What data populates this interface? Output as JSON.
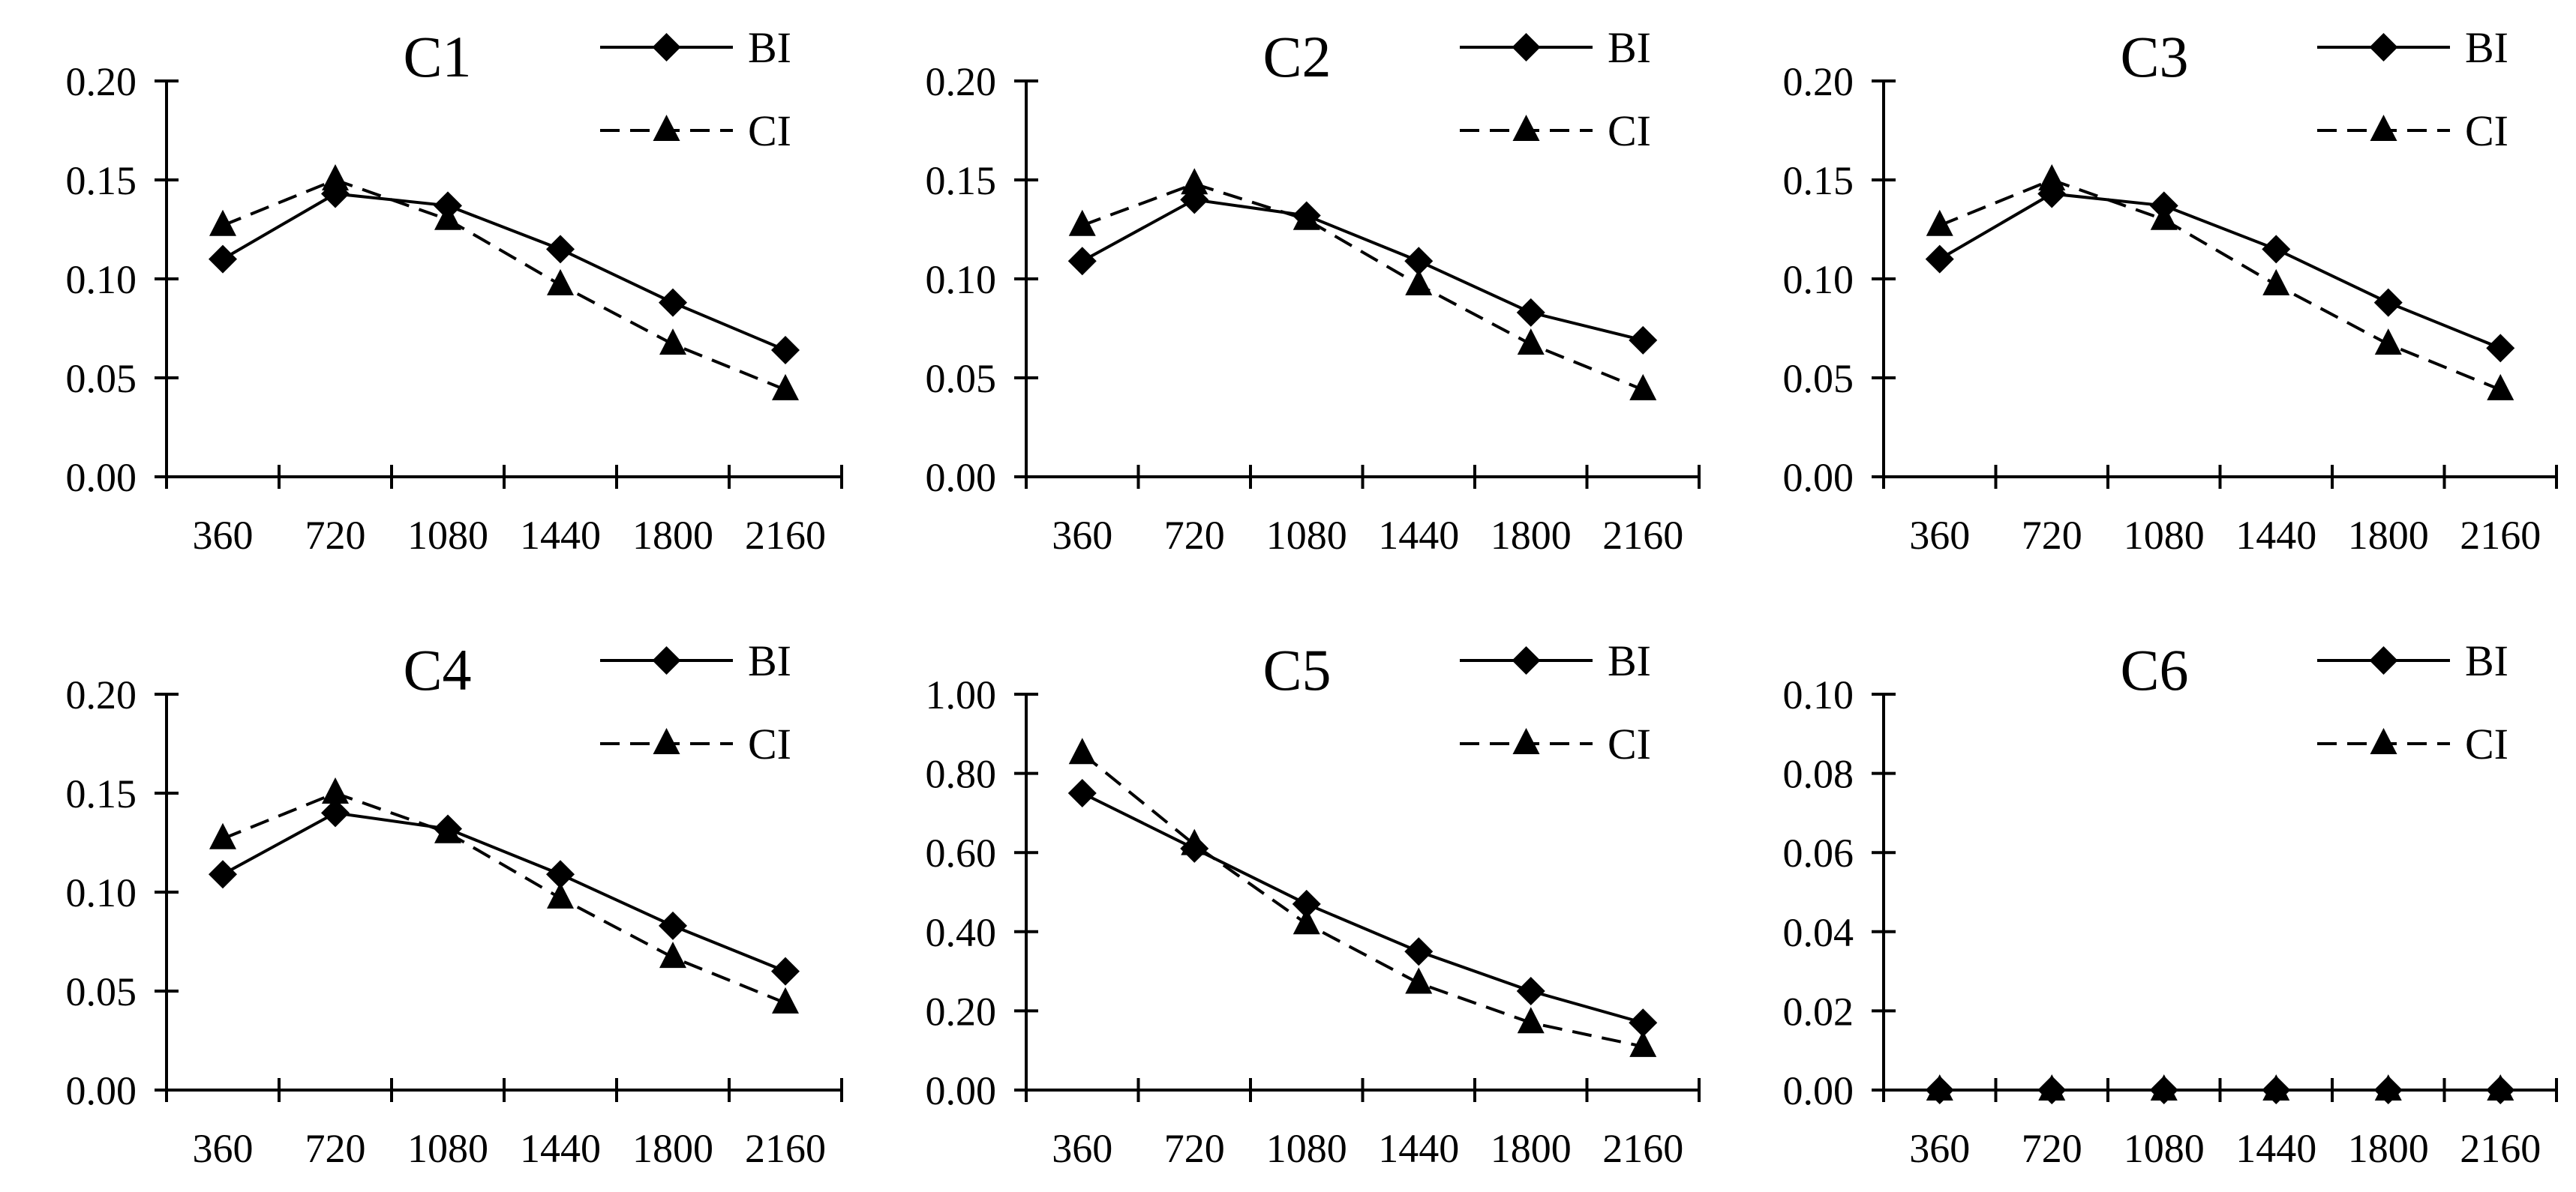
{
  "legend": {
    "series_a": "BI",
    "series_b": "CI"
  },
  "chart_data": [
    {
      "type": "line",
      "title": "C1",
      "categories": [
        "360",
        "720",
        "1080",
        "1440",
        "1800",
        "2160"
      ],
      "ylim": [
        0,
        0.2
      ],
      "yticks": [
        "0.00",
        "0.05",
        "0.10",
        "0.15",
        "0.20"
      ],
      "series": [
        {
          "name": "BI",
          "marker": "diamond",
          "dash": "solid",
          "values": [
            0.11,
            0.143,
            0.137,
            0.115,
            0.088,
            0.064
          ]
        },
        {
          "name": "CI",
          "marker": "triangle",
          "dash": "dashed",
          "values": [
            0.127,
            0.15,
            0.13,
            0.097,
            0.067,
            0.044
          ]
        }
      ]
    },
    {
      "type": "line",
      "title": "C2",
      "categories": [
        "360",
        "720",
        "1080",
        "1440",
        "1800",
        "2160"
      ],
      "ylim": [
        0,
        0.2
      ],
      "yticks": [
        "0.00",
        "0.05",
        "0.10",
        "0.15",
        "0.20"
      ],
      "series": [
        {
          "name": "BI",
          "marker": "diamond",
          "dash": "solid",
          "values": [
            0.109,
            0.14,
            0.132,
            0.109,
            0.083,
            0.069
          ]
        },
        {
          "name": "CI",
          "marker": "triangle",
          "dash": "dashed",
          "values": [
            0.127,
            0.148,
            0.13,
            0.097,
            0.067,
            0.044
          ]
        }
      ]
    },
    {
      "type": "line",
      "title": "C3",
      "categories": [
        "360",
        "720",
        "1080",
        "1440",
        "1800",
        "2160"
      ],
      "ylim": [
        0,
        0.2
      ],
      "yticks": [
        "0.00",
        "0.05",
        "0.10",
        "0.15",
        "0.20"
      ],
      "series": [
        {
          "name": "BI",
          "marker": "diamond",
          "dash": "solid",
          "values": [
            0.11,
            0.143,
            0.137,
            0.115,
            0.088,
            0.065
          ]
        },
        {
          "name": "CI",
          "marker": "triangle",
          "dash": "dashed",
          "values": [
            0.127,
            0.15,
            0.13,
            0.097,
            0.067,
            0.044
          ]
        }
      ]
    },
    {
      "type": "line",
      "title": "C4",
      "categories": [
        "360",
        "720",
        "1080",
        "1440",
        "1800",
        "2160"
      ],
      "ylim": [
        0,
        0.2
      ],
      "yticks": [
        "0.00",
        "0.05",
        "0.10",
        "0.15",
        "0.20"
      ],
      "series": [
        {
          "name": "BI",
          "marker": "diamond",
          "dash": "solid",
          "values": [
            0.109,
            0.14,
            0.132,
            0.109,
            0.083,
            0.06
          ]
        },
        {
          "name": "CI",
          "marker": "triangle",
          "dash": "dashed",
          "values": [
            0.127,
            0.15,
            0.13,
            0.097,
            0.067,
            0.044
          ]
        }
      ]
    },
    {
      "type": "line",
      "title": "C5",
      "categories": [
        "360",
        "720",
        "1080",
        "1440",
        "1800",
        "2160"
      ],
      "ylim": [
        0,
        1.0
      ],
      "yticks": [
        "0.00",
        "0.20",
        "0.40",
        "0.60",
        "0.80",
        "1.00"
      ],
      "series": [
        {
          "name": "BI",
          "marker": "diamond",
          "dash": "solid",
          "values": [
            0.75,
            0.61,
            0.47,
            0.35,
            0.25,
            0.17
          ]
        },
        {
          "name": "CI",
          "marker": "triangle",
          "dash": "dashed",
          "values": [
            0.85,
            0.62,
            0.42,
            0.27,
            0.17,
            0.11
          ]
        }
      ]
    },
    {
      "type": "line",
      "title": "C6",
      "categories": [
        "360",
        "720",
        "1080",
        "1440",
        "1800",
        "2160"
      ],
      "ylim": [
        0,
        0.1
      ],
      "yticks": [
        "0.00",
        "0.02",
        "0.04",
        "0.06",
        "0.08",
        "0.10"
      ],
      "series": [
        {
          "name": "BI",
          "marker": "diamond",
          "dash": "solid",
          "values": [
            0,
            0,
            0,
            0,
            0,
            0
          ]
        },
        {
          "name": "CI",
          "marker": "triangle",
          "dash": "dashed",
          "values": [
            0,
            0,
            0,
            0,
            0,
            0
          ]
        }
      ]
    }
  ]
}
